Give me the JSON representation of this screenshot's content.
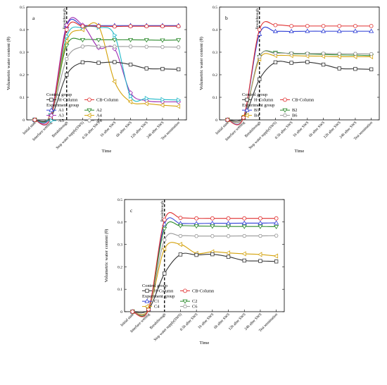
{
  "categories": [
    "Initial state",
    "Interface wetting",
    "Breakthrough",
    "Stop water supply(SWS)",
    "0.5h after SWS",
    "1h after SWS",
    "6h after SWS",
    "12h after SWS",
    "24h after SWS",
    "Test termination"
  ],
  "chart_data": [
    {
      "type": "line",
      "panel": "a",
      "xlabel": "Time",
      "ylabel": "Volumetric water content (θ)",
      "ylim": [
        0,
        0.5
      ],
      "yticks": [
        0,
        0.1,
        0.2,
        0.3,
        0.4,
        0.5
      ],
      "annotation": "Breakthrough",
      "breakthrough_index": 2,
      "legend_placement": "lower-left",
      "legend_headers": [
        "Control group",
        "Experiment group"
      ],
      "control_series": [
        {
          "name": "H-Column",
          "color": "#333333",
          "marker": "square",
          "values": [
            0.0,
            0.01,
            0.2,
            0.255,
            0.253,
            0.256,
            0.245,
            0.228,
            0.226,
            0.224
          ]
        },
        {
          "name": "CB-Column",
          "color": "#e03131",
          "marker": "circle",
          "values": [
            0.0,
            0.01,
            0.4,
            0.415,
            0.415,
            0.414,
            0.415,
            0.415,
            0.415,
            0.415
          ]
        }
      ],
      "experiment_series": [
        {
          "name": "A1",
          "color": "#2f3fd6",
          "marker": "triangle-up",
          "values": [
            0.0,
            0.01,
            0.415,
            0.418,
            0.418,
            0.418,
            0.418,
            0.418,
            0.418,
            0.418
          ]
        },
        {
          "name": "A2",
          "color": "#2c8a2c",
          "marker": "triangle-down",
          "values": [
            0.0,
            0.02,
            0.33,
            0.355,
            0.355,
            0.355,
            0.355,
            0.354,
            0.353,
            0.354
          ]
        },
        {
          "name": "A3",
          "color": "#9e2fb3",
          "marker": "diamond",
          "values": [
            0.0,
            0.02,
            0.42,
            0.42,
            0.32,
            0.315,
            0.12,
            0.085,
            0.08,
            0.08
          ]
        },
        {
          "name": "A4",
          "color": "#d4a20c",
          "marker": "triangle-left",
          "values": [
            0.0,
            0.02,
            0.35,
            0.4,
            0.415,
            0.17,
            0.08,
            0.072,
            0.065,
            0.06
          ]
        },
        {
          "name": "A5",
          "color": "#1fb8c9",
          "marker": "triangle-right",
          "values": [
            0.0,
            0.02,
            0.37,
            0.41,
            0.41,
            0.375,
            0.105,
            0.095,
            0.09,
            0.088
          ]
        },
        {
          "name": "A6",
          "color": "#999999",
          "marker": "hexagon",
          "values": [
            0.0,
            0.02,
            0.27,
            0.325,
            0.325,
            0.325,
            0.325,
            0.324,
            0.323,
            0.322
          ]
        }
      ]
    },
    {
      "type": "line",
      "panel": "b",
      "xlabel": "Time",
      "ylabel": "Volumetric water content (θ)",
      "ylim": [
        0,
        0.5
      ],
      "yticks": [
        0,
        0.1,
        0.2,
        0.3,
        0.4,
        0.5
      ],
      "annotation": "Breakthrough",
      "breakthrough_index": 2,
      "legend_placement": "lower-right",
      "legend_headers": [
        "Control group",
        "Experiment group"
      ],
      "control_series": [
        {
          "name": "H-Column",
          "color": "#333333",
          "marker": "square",
          "values": [
            0.0,
            0.01,
            0.18,
            0.255,
            0.253,
            0.256,
            0.245,
            0.228,
            0.226,
            0.224
          ]
        },
        {
          "name": "CB-Column",
          "color": "#e03131",
          "marker": "circle",
          "values": [
            0.0,
            0.01,
            0.4,
            0.42,
            0.416,
            0.416,
            0.416,
            0.416,
            0.416,
            0.416
          ]
        }
      ],
      "experiment_series": [
        {
          "name": "B1",
          "color": "#2f3fd6",
          "marker": "triangle-up",
          "values": [
            0.0,
            0.01,
            0.38,
            0.392,
            0.392,
            0.393,
            0.393,
            0.393,
            0.393,
            0.393
          ]
        },
        {
          "name": "B2",
          "color": "#2c8a2c",
          "marker": "triangle-down",
          "values": [
            0.0,
            0.01,
            0.28,
            0.298,
            0.293,
            0.292,
            0.29,
            0.288,
            0.287,
            0.285
          ]
        },
        {
          "name": "B4",
          "color": "#d4a20c",
          "marker": "triangle-left",
          "values": [
            0.0,
            0.01,
            0.27,
            0.285,
            0.285,
            0.283,
            0.282,
            0.28,
            0.28,
            0.28
          ]
        },
        {
          "name": "B6",
          "color": "#999999",
          "marker": "hexagon",
          "values": [
            0.0,
            0.01,
            0.28,
            0.295,
            0.295,
            0.294,
            0.294,
            0.293,
            0.293,
            0.292
          ]
        }
      ]
    },
    {
      "type": "line",
      "panel": "c",
      "xlabel": "Time",
      "ylabel": "Volumetric water content (θ)",
      "ylim": [
        0,
        0.5
      ],
      "yticks": [
        0,
        0.1,
        0.2,
        0.3,
        0.4,
        0.5
      ],
      "annotation": "Breakthrough",
      "breakthrough_index": 2,
      "legend_placement": "lower-right",
      "legend_headers": [
        "Control group",
        "Experiment group"
      ],
      "control_series": [
        {
          "name": "H-Column",
          "color": "#333333",
          "marker": "square",
          "values": [
            0.0,
            0.01,
            0.17,
            0.255,
            0.253,
            0.256,
            0.245,
            0.228,
            0.226,
            0.224
          ]
        },
        {
          "name": "CB-Column",
          "color": "#e03131",
          "marker": "circle",
          "values": [
            0.0,
            0.01,
            0.41,
            0.418,
            0.416,
            0.416,
            0.416,
            0.416,
            0.416,
            0.416
          ]
        }
      ],
      "experiment_series": [
        {
          "name": "C1",
          "color": "#2f3fd6",
          "marker": "triangle-up",
          "values": [
            0.0,
            0.01,
            0.39,
            0.393,
            0.393,
            0.394,
            0.394,
            0.395,
            0.395,
            0.396
          ]
        },
        {
          "name": "C2",
          "color": "#2c8a2c",
          "marker": "triangle-down",
          "values": [
            0.0,
            0.01,
            0.37,
            0.383,
            0.382,
            0.381,
            0.38,
            0.38,
            0.38,
            0.379
          ]
        },
        {
          "name": "C4",
          "color": "#d4a20c",
          "marker": "triangle-left",
          "values": [
            0.0,
            0.01,
            0.28,
            0.3,
            0.26,
            0.267,
            0.262,
            0.258,
            0.255,
            0.248
          ]
        },
        {
          "name": "C6",
          "color": "#999999",
          "marker": "hexagon",
          "values": [
            0.0,
            0.01,
            0.32,
            0.338,
            0.337,
            0.337,
            0.337,
            0.338,
            0.338,
            0.339
          ]
        }
      ]
    }
  ]
}
